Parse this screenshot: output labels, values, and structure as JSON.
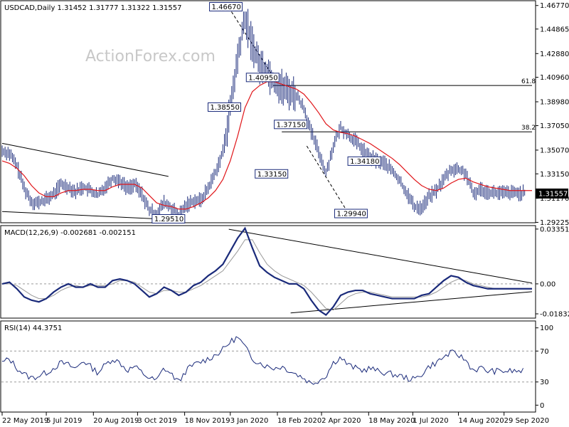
{
  "watermark": "ActionForex.com",
  "chart_data": [
    {
      "type": "line",
      "name": "price",
      "title": "USDCAD,Daily  1.31452 1.31777 1.31322 1.31557",
      "ylim": [
        1.2925,
        1.471
      ],
      "yticks": [
        "1.46770",
        "1.44865",
        "1.42880",
        "1.40960",
        "1.38980",
        "1.37050",
        "1.35070",
        "1.33150",
        "1.31170",
        "1.29225"
      ],
      "ytick_values": [
        1.4677,
        1.44865,
        1.4288,
        1.4096,
        1.3898,
        1.3705,
        1.3507,
        1.3315,
        1.3117,
        1.29225
      ],
      "last_price": {
        "label": "1.31557",
        "value": 1.31557
      },
      "x": [
        0,
        5,
        10,
        15,
        20,
        25,
        30,
        35,
        40,
        45,
        50,
        55,
        60,
        65,
        70,
        75,
        80,
        85,
        90,
        95,
        100,
        105,
        110,
        115,
        120,
        125,
        130,
        135,
        140,
        145,
        150,
        155,
        160,
        165,
        170,
        175,
        180,
        185,
        190,
        195,
        200,
        205,
        210,
        215,
        220,
        225,
        230,
        235,
        240,
        245,
        250,
        255,
        260,
        265,
        270,
        275,
        280,
        285,
        290,
        295,
        300,
        305,
        310,
        315,
        320,
        325,
        330,
        335,
        340,
        345,
        350,
        355,
        360
      ],
      "values": [
        1.35,
        1.348,
        1.338,
        1.32,
        1.309,
        1.308,
        1.311,
        1.315,
        1.323,
        1.321,
        1.317,
        1.321,
        1.318,
        1.314,
        1.321,
        1.328,
        1.326,
        1.32,
        1.323,
        1.315,
        1.302,
        1.299,
        1.308,
        1.304,
        1.298,
        1.306,
        1.31,
        1.31,
        1.32,
        1.333,
        1.349,
        1.384,
        1.425,
        1.457,
        1.436,
        1.42,
        1.415,
        1.406,
        1.401,
        1.398,
        1.395,
        1.385,
        1.365,
        1.35,
        1.332,
        1.354,
        1.369,
        1.363,
        1.358,
        1.351,
        1.345,
        1.342,
        1.34,
        1.334,
        1.326,
        1.316,
        1.305,
        1.304,
        1.313,
        1.318,
        1.327,
        1.335,
        1.335,
        1.332,
        1.315,
        1.319,
        1.317,
        1.316,
        1.316,
        1.316,
        1.316,
        1.316,
        1.316
      ],
      "ma": [
        1.342,
        1.34,
        1.336,
        1.33,
        1.322,
        1.316,
        1.313,
        1.313,
        1.316,
        1.318,
        1.318,
        1.319,
        1.319,
        1.318,
        1.318,
        1.321,
        1.323,
        1.323,
        1.323,
        1.32,
        1.314,
        1.308,
        1.306,
        1.305,
        1.303,
        1.303,
        1.305,
        1.308,
        1.312,
        1.318,
        1.327,
        1.342,
        1.362,
        1.385,
        1.398,
        1.403,
        1.406,
        1.406,
        1.404,
        1.402,
        1.4,
        1.396,
        1.389,
        1.381,
        1.372,
        1.367,
        1.365,
        1.364,
        1.362,
        1.359,
        1.356,
        1.352,
        1.348,
        1.344,
        1.339,
        1.333,
        1.327,
        1.322,
        1.319,
        1.318,
        1.32,
        1.324,
        1.327,
        1.328,
        1.325,
        1.323,
        1.321,
        1.32,
        1.319,
        1.318,
        1.318,
        1.318,
        1.318
      ],
      "levels": [
        {
          "label": "61.8",
          "value": 1.403
        },
        {
          "label": "38.2",
          "value": 1.3655
        }
      ],
      "annotations": [
        {
          "label": "1.46670",
          "x": 152,
          "value": 1.4667
        },
        {
          "label": "1.38550",
          "x": 151,
          "value": 1.3855
        },
        {
          "label": "1.40950",
          "x": 177,
          "value": 1.4095
        },
        {
          "label": "1.37150",
          "x": 196,
          "value": 1.3715
        },
        {
          "label": "1.33150",
          "x": 183,
          "value": 1.3315
        },
        {
          "label": "1.34180",
          "x": 246,
          "value": 1.3418
        },
        {
          "label": "1.29940",
          "x": 237,
          "value": 1.2994
        },
        {
          "label": "1.29510",
          "x": 113,
          "value": 1.2951
        }
      ],
      "trendlines": [
        {
          "x1": 0,
          "y1": 1.3562,
          "x2": 113,
          "y2": 1.3294
        },
        {
          "x1": 0,
          "y1": 1.301,
          "x2": 115,
          "y2": 1.2945
        },
        {
          "x1": 154,
          "y1": 1.466,
          "x2": 184,
          "y2": 1.4105
        },
        {
          "x1": 184,
          "y1": 1.403,
          "x2": 360,
          "y2": 1.403
        },
        {
          "x1": 190,
          "y1": 1.3655,
          "x2": 360,
          "y2": 1.3655
        },
        {
          "x1": 207,
          "y1": 1.354,
          "x2": 235,
          "y2": 1.3
        }
      ]
    },
    {
      "type": "line",
      "name": "macd",
      "title": "MACD(12,26,9) -0.002681 -0.002151",
      "ylim": [
        -0.0205,
        0.0352
      ],
      "yticks": [
        "0.033515",
        "0.00",
        "-0.018324"
      ],
      "ytick_values": [
        0.033515,
        0.0,
        -0.018324
      ],
      "x": [
        0,
        5,
        10,
        15,
        20,
        25,
        30,
        35,
        40,
        45,
        50,
        55,
        60,
        65,
        70,
        75,
        80,
        85,
        90,
        95,
        100,
        105,
        110,
        115,
        120,
        125,
        130,
        135,
        140,
        145,
        150,
        155,
        160,
        165,
        170,
        175,
        180,
        185,
        190,
        195,
        200,
        205,
        210,
        215,
        220,
        225,
        230,
        235,
        240,
        245,
        250,
        255,
        260,
        265,
        270,
        275,
        280,
        285,
        290,
        295,
        300,
        305,
        310,
        315,
        320,
        325,
        330,
        335,
        340,
        345,
        350,
        355,
        360
      ],
      "macd": [
        0.0,
        0.001,
        -0.003,
        -0.008,
        -0.01,
        -0.011,
        -0.009,
        -0.005,
        -0.002,
        0.0,
        -0.002,
        -0.002,
        0.0,
        -0.002,
        -0.002,
        0.002,
        0.003,
        0.002,
        0.0,
        -0.004,
        -0.008,
        -0.006,
        -0.002,
        -0.004,
        -0.007,
        -0.005,
        -0.001,
        0.001,
        0.005,
        0.008,
        0.012,
        0.02,
        0.028,
        0.034,
        0.022,
        0.011,
        0.007,
        0.004,
        0.002,
        0.0,
        0.0,
        -0.003,
        -0.01,
        -0.016,
        -0.019,
        -0.014,
        -0.007,
        -0.005,
        -0.004,
        -0.004,
        -0.006,
        -0.007,
        -0.008,
        -0.009,
        -0.009,
        -0.009,
        -0.009,
        -0.007,
        -0.006,
        -0.002,
        0.002,
        0.005,
        0.004,
        0.001,
        -0.001,
        -0.002,
        -0.003,
        -0.003,
        -0.003,
        -0.003,
        -0.003,
        -0.003,
        -0.003
      ],
      "signal": [
        0.0,
        0.0,
        -0.001,
        -0.004,
        -0.007,
        -0.009,
        -0.009,
        -0.007,
        -0.004,
        -0.002,
        -0.001,
        -0.002,
        -0.001,
        -0.001,
        -0.001,
        0.0,
        0.002,
        0.002,
        0.001,
        -0.002,
        -0.005,
        -0.006,
        -0.004,
        -0.004,
        -0.005,
        -0.005,
        -0.003,
        -0.001,
        0.002,
        0.005,
        0.008,
        0.014,
        0.02,
        0.027,
        0.027,
        0.019,
        0.012,
        0.008,
        0.005,
        0.003,
        0.001,
        -0.001,
        -0.005,
        -0.01,
        -0.015,
        -0.016,
        -0.012,
        -0.008,
        -0.006,
        -0.005,
        -0.005,
        -0.006,
        -0.007,
        -0.008,
        -0.008,
        -0.008,
        -0.008,
        -0.008,
        -0.007,
        -0.005,
        -0.002,
        0.001,
        0.003,
        0.002,
        0.0,
        -0.001,
        -0.002,
        -0.003,
        -0.003,
        -0.003,
        -0.003,
        -0.003,
        -0.003
      ],
      "trendlines": [
        {
          "x1": 154,
          "y1": 0.0334,
          "x2": 360,
          "y2": 0.0005
        },
        {
          "x1": 196,
          "y1": -0.0178,
          "x2": 360,
          "y2": -0.0048
        }
      ]
    },
    {
      "type": "line",
      "name": "rsi",
      "title": "RSI(14) 44.3751",
      "ylim": [
        -8,
        108
      ],
      "yticks": [
        "100",
        "70",
        "30",
        "0"
      ],
      "ytick_values": [
        100,
        70,
        30,
        0
      ],
      "levels": [
        70,
        30
      ],
      "x": [
        0,
        5,
        10,
        15,
        20,
        25,
        30,
        35,
        40,
        45,
        50,
        55,
        60,
        65,
        70,
        75,
        80,
        85,
        90,
        95,
        100,
        105,
        110,
        115,
        120,
        125,
        130,
        135,
        140,
        145,
        150,
        155,
        160,
        165,
        170,
        175,
        180,
        185,
        190,
        195,
        200,
        205,
        210,
        215,
        220,
        225,
        230,
        235,
        240,
        245,
        250,
        255,
        260,
        265,
        270,
        275,
        280,
        285,
        290,
        295,
        300,
        305,
        310,
        315,
        320,
        325,
        330,
        335,
        340,
        345,
        350,
        355,
        360
      ],
      "values": [
        55,
        60,
        48,
        40,
        35,
        38,
        42,
        48,
        55,
        52,
        47,
        58,
        50,
        42,
        52,
        60,
        55,
        45,
        50,
        42,
        35,
        32,
        48,
        40,
        30,
        45,
        52,
        56,
        60,
        65,
        72,
        82,
        88,
        75,
        60,
        55,
        50,
        48,
        50,
        45,
        40,
        35,
        28,
        32,
        38,
        55,
        62,
        52,
        48,
        45,
        48,
        44,
        42,
        40,
        38,
        35,
        33,
        40,
        50,
        55,
        62,
        68,
        65,
        58,
        45,
        48,
        44,
        44,
        44,
        44,
        44,
        44,
        44
      ]
    }
  ],
  "x_axis": {
    "labels": [
      "22 May 2019",
      "5 Jul 2019",
      "20 Aug 2019",
      "3 Oct 2019",
      "18 Nov 2019",
      "3 Jan 2020",
      "18 Feb 2020",
      "2 Apr 2020",
      "18 May 2020",
      "1 Jul 2020",
      "14 Aug 2020",
      "29 Sep 2020"
    ],
    "positions": [
      0,
      30,
      62,
      92,
      124,
      155,
      187,
      217,
      249,
      279,
      310,
      341
    ]
  },
  "colors": {
    "price_bar": "#1a2a7a",
    "ma": "#e0161a",
    "macd": "#1a2a7a",
    "signal": "#999999",
    "grid": "#9a9a9a",
    "trend": "#000000"
  }
}
